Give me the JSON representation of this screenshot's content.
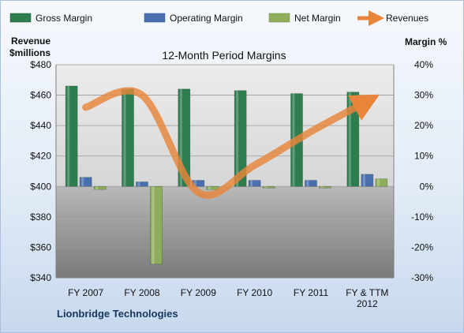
{
  "chart_data": {
    "type": "bar",
    "title": "12-Month Period Margins",
    "company": "Lionbridge Technologies",
    "y_left_label_line1": "Revenue",
    "y_left_label_line2": "$millions",
    "y_right_label": "Margin %",
    "categories": [
      "FY 2007",
      "FY 2008",
      "FY 2009",
      "FY 2010",
      "FY 2011",
      "FY & TTM 2012"
    ],
    "y_left_ticks": [
      "$340",
      "$360",
      "$380",
      "$400",
      "$420",
      "$440",
      "$460",
      "$480"
    ],
    "y_left_range": [
      340,
      480
    ],
    "y_right_ticks": [
      "-30%",
      "-20%",
      "-10%",
      "0%",
      "10%",
      "20%",
      "30%",
      "40%"
    ],
    "y_right_range": [
      -30,
      40
    ],
    "grid": true,
    "legend_position": "top",
    "series": [
      {
        "name": "Gross Margin",
        "axis": "right",
        "kind": "bar",
        "color": "#2e7d4f",
        "values": [
          33.0,
          32.0,
          32.0,
          31.5,
          30.5,
          31.0
        ]
      },
      {
        "name": "Operating Margin",
        "axis": "right",
        "kind": "bar",
        "color": "#4a6fb0",
        "values": [
          3.0,
          1.5,
          2.0,
          2.0,
          2.0,
          4.0
        ]
      },
      {
        "name": "Net Margin",
        "axis": "right",
        "kind": "bar",
        "color": "#8fae5b",
        "values": [
          -1.0,
          -25.5,
          -1.0,
          -0.5,
          -0.5,
          2.5
        ]
      },
      {
        "name": "Revenues",
        "axis": "left",
        "kind": "line",
        "color": "#e8853a",
        "values": [
          452,
          460,
          396,
          414,
          436,
          456
        ]
      }
    ]
  }
}
